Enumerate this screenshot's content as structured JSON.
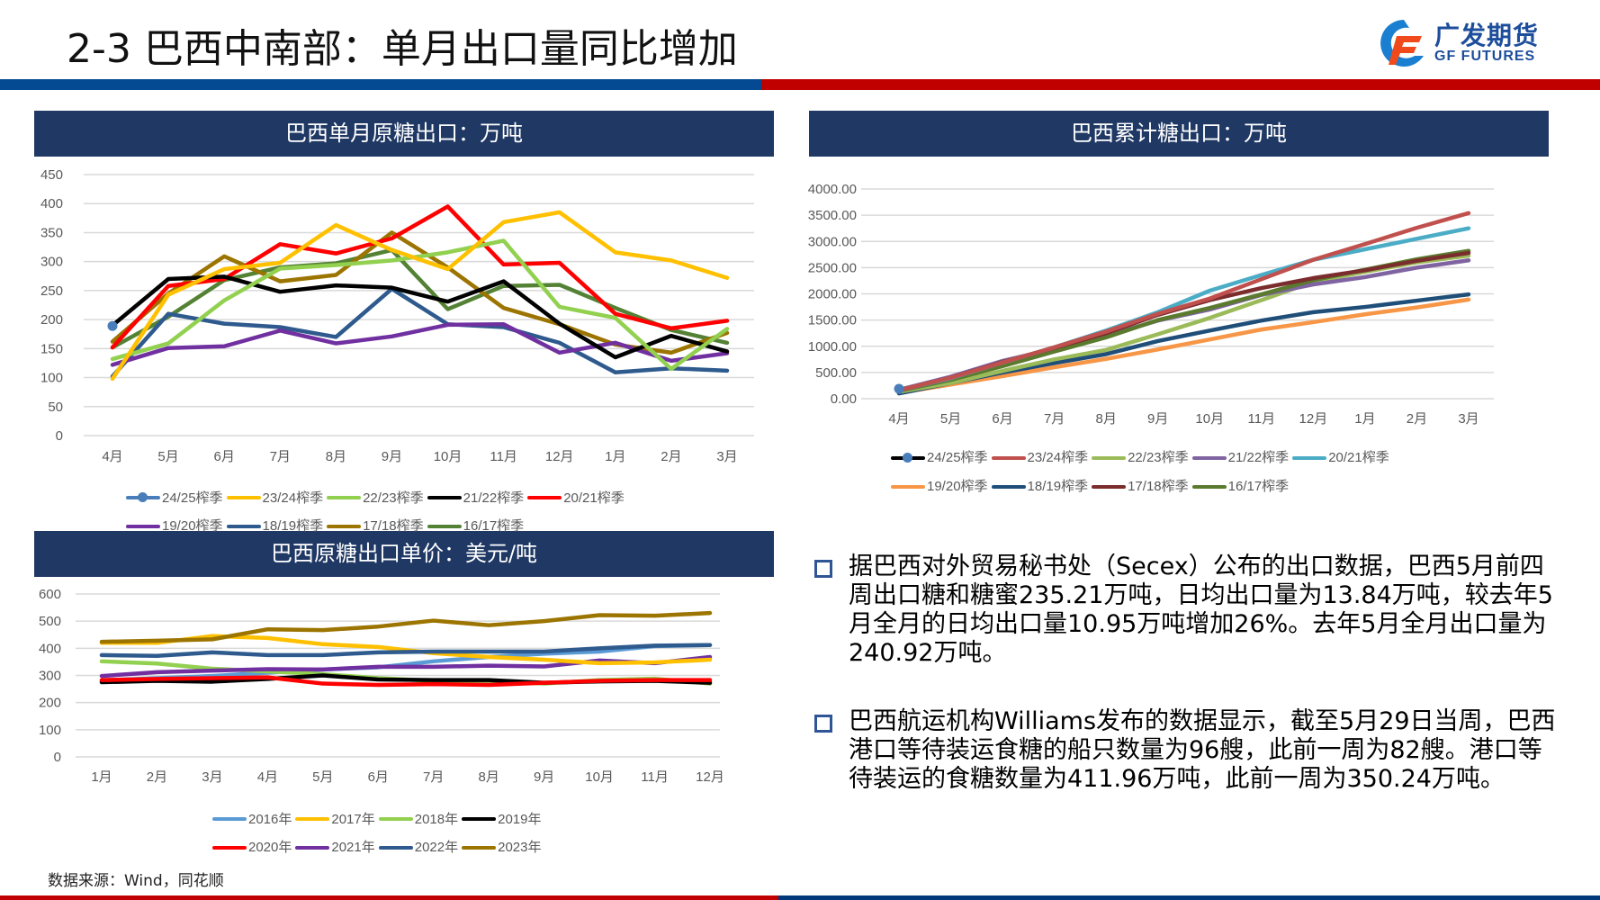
{
  "header": {
    "title": "2-3 巴西中南部：单月出口量同比增加",
    "logo_cn": "广发期货",
    "logo_en": "GF FUTURES"
  },
  "colors": {
    "header_blue": "#034a93",
    "header_red": "#c00000",
    "panel_navy": "#1f3864"
  },
  "chart_data": [
    {
      "type": "line",
      "title": "巴西单月原糖出口：万吨",
      "xlabel": "",
      "ylabel": "",
      "categories": [
        "4月",
        "5月",
        "6月",
        "7月",
        "8月",
        "9月",
        "10月",
        "11月",
        "12月",
        "1月",
        "2月",
        "3月"
      ],
      "ylim": [
        0,
        450
      ],
      "yticks": [
        "0",
        "50",
        "100",
        "150",
        "200",
        "250",
        "300",
        "350",
        "400",
        "450"
      ],
      "grid": true,
      "legend": "bottom",
      "series": [
        {
          "name": "16/17榨季",
          "color": "#548235",
          "values": [
            152,
            205,
            268,
            290,
            297,
            320,
            218,
            258,
            260,
            220,
            182,
            160
          ]
        },
        {
          "name": "17/18榨季",
          "color": "#9c7400",
          "values": [
            162,
            245,
            309,
            266,
            277,
            350,
            290,
            220,
            192,
            157,
            143,
            177
          ]
        },
        {
          "name": "18/19榨季",
          "color": "#2e5a8e",
          "values": [
            102,
            210,
            193,
            187,
            170,
            253,
            192,
            187,
            160,
            109,
            116,
            112
          ]
        },
        {
          "name": "19/20榨季",
          "color": "#7030a0",
          "values": [
            122,
            151,
            154,
            181,
            159,
            171,
            191,
            192,
            143,
            160,
            129,
            142
          ]
        },
        {
          "name": "20/21榨季",
          "color": "#ff0000",
          "values": [
            152,
            258,
            270,
            330,
            314,
            340,
            395,
            295,
            298,
            210,
            185,
            198
          ]
        },
        {
          "name": "21/22榨季",
          "color": "#000000",
          "values": [
            190,
            270,
            274,
            248,
            259,
            255,
            231,
            266,
            193,
            135,
            172,
            145
          ]
        },
        {
          "name": "22/23榨季",
          "color": "#92d050",
          "values": [
            132,
            159,
            233,
            288,
            294,
            302,
            316,
            336,
            222,
            203,
            115,
            184
          ]
        },
        {
          "name": "23/24榨季",
          "color": "#ffc000",
          "values": [
            98,
            243,
            287,
            298,
            363,
            320,
            287,
            368,
            385,
            316,
            302,
            272
          ]
        },
        {
          "name": "24/25榨季",
          "color": "#4a7ebb",
          "marker": true,
          "values": [
            189,
            null,
            null,
            null,
            null,
            null,
            null,
            null,
            null,
            null,
            null,
            null
          ]
        }
      ],
      "legend_order": [
        "24/25榨季",
        "23/24榨季",
        "22/23榨季",
        "21/22榨季",
        "20/21榨季",
        "19/20榨季",
        "18/19榨季",
        "17/18榨季",
        "16/17榨季"
      ]
    },
    {
      "type": "line",
      "title": "巴西累计糖出口：万吨",
      "xlabel": "",
      "ylabel": "",
      "categories": [
        "4月",
        "5月",
        "6月",
        "7月",
        "8月",
        "9月",
        "10月",
        "11月",
        "12月",
        "1月",
        "2月",
        "3月"
      ],
      "ylim": [
        0,
        4000
      ],
      "yticks": [
        "0.00",
        "500.00",
        "1000.00",
        "1500.00",
        "2000.00",
        "2500.00",
        "3000.00",
        "3500.00",
        "4000.00"
      ],
      "grid": true,
      "legend": "bottom",
      "series": [
        {
          "name": "19/20榨季",
          "color": "#f79646",
          "values": [
            110,
            270,
            430,
            600,
            760,
            940,
            1130,
            1320,
            1460,
            1610,
            1740,
            1890
          ]
        },
        {
          "name": "18/19榨季",
          "color": "#1f4e79",
          "values": [
            100,
            300,
            500,
            680,
            850,
            1100,
            1300,
            1490,
            1650,
            1750,
            1870,
            1990
          ]
        },
        {
          "name": "22/23榨季",
          "color": "#9bbb59",
          "values": [
            130,
            300,
            530,
            750,
            930,
            1230,
            1540,
            1880,
            2230,
            2420,
            2600,
            2730
          ]
        },
        {
          "name": "21/22榨季",
          "color": "#8064a2",
          "values": [
            170,
            420,
            720,
            950,
            1200,
            1490,
            1700,
            1980,
            2180,
            2320,
            2500,
            2640
          ]
        },
        {
          "name": "16/17榨季",
          "color": "#5a7a2e",
          "values": [
            150,
            360,
            620,
            900,
            1170,
            1500,
            1730,
            1990,
            2260,
            2460,
            2660,
            2820
          ]
        },
        {
          "name": "17/18榨季",
          "color": "#7b2c2c",
          "values": [
            160,
            400,
            700,
            970,
            1250,
            1600,
            1880,
            2110,
            2300,
            2450,
            2630,
            2780
          ]
        },
        {
          "name": "20/21榨季",
          "color": "#4bacc6",
          "values": [
            160,
            390,
            690,
            980,
            1300,
            1650,
            2060,
            2360,
            2650,
            2850,
            3050,
            3250
          ]
        },
        {
          "name": "23/24榨季",
          "color": "#c0504d",
          "values": [
            160,
            400,
            690,
            980,
            1280,
            1620,
            1910,
            2280,
            2650,
            2950,
            3260,
            3540
          ]
        },
        {
          "name": "24/25榨季",
          "color": "#000000",
          "marker": true,
          "marker_color": "#4a7ebb",
          "values": [
            189,
            null,
            null,
            null,
            null,
            null,
            null,
            null,
            null,
            null,
            null,
            null
          ]
        }
      ],
      "legend_order": [
        "24/25榨季",
        "23/24榨季",
        "22/23榨季",
        "21/22榨季",
        "20/21榨季",
        "19/20榨季",
        "18/19榨季",
        "17/18榨季",
        "16/17榨季"
      ]
    },
    {
      "type": "line",
      "title": "巴西原糖出口单价：美元/吨",
      "xlabel": "",
      "ylabel": "",
      "categories": [
        "1月",
        "2月",
        "3月",
        "4月",
        "5月",
        "6月",
        "7月",
        "8月",
        "9月",
        "10月",
        "11月",
        "12月"
      ],
      "ylim": [
        0,
        600
      ],
      "yticks": [
        "0",
        "100",
        "200",
        "300",
        "400",
        "500",
        "600"
      ],
      "grid": true,
      "legend": "bottom",
      "series": [
        {
          "name": "2016年",
          "color": "#5b9bd5",
          "values": [
            282,
            290,
            298,
            310,
            322,
            330,
            352,
            368,
            380,
            388,
            408,
            412
          ]
        },
        {
          "name": "2018年",
          "color": "#92d050",
          "values": [
            352,
            344,
            325,
            315,
            305,
            290,
            280,
            280,
            270,
            283,
            288,
            270
          ]
        },
        {
          "name": "2019年",
          "color": "#000000",
          "values": [
            275,
            280,
            277,
            287,
            300,
            285,
            283,
            283,
            273,
            278,
            280,
            273
          ]
        },
        {
          "name": "2020年",
          "color": "#ff0000",
          "values": [
            283,
            287,
            290,
            293,
            270,
            265,
            268,
            265,
            273,
            280,
            283,
            283
          ]
        },
        {
          "name": "2021年",
          "color": "#7030a0",
          "values": [
            298,
            312,
            318,
            323,
            322,
            332,
            332,
            336,
            333,
            355,
            345,
            368
          ]
        },
        {
          "name": "2017年",
          "color": "#ffc000",
          "values": [
            420,
            420,
            445,
            438,
            415,
            405,
            382,
            368,
            358,
            345,
            348,
            358
          ]
        },
        {
          "name": "2022年",
          "color": "#2e5a8e",
          "values": [
            375,
            372,
            385,
            375,
            375,
            385,
            388,
            388,
            388,
            400,
            410,
            412
          ]
        },
        {
          "name": "2023年",
          "color": "#9c7400",
          "values": [
            424,
            428,
            433,
            470,
            467,
            480,
            502,
            485,
            500,
            522,
            520,
            530
          ]
        }
      ],
      "legend_order": [
        "2016年",
        "2017年",
        "2018年",
        "2019年",
        "2020年",
        "2021年",
        "2022年",
        "2023年"
      ]
    }
  ],
  "text": {
    "bullets": [
      "据巴西对外贸易秘书处（Secex）公布的出口数据，巴西5月前四周出口糖和糖蜜235.21万吨，日均出口量为13.84万吨，较去年5月全月的日均出口量10.95万吨增加26%。去年5月全月出口量为240.92万吨。",
      "巴西航运机构Williams发布的数据显示，截至5月29日当周，巴西港口等待装运食糖的船只数量为96艘，此前一周为82艘。港口等待装运的食糖数量为411.96万吨，此前一周为350.24万吨。"
    ],
    "source": "数据来源：Wind，同花顺"
  }
}
